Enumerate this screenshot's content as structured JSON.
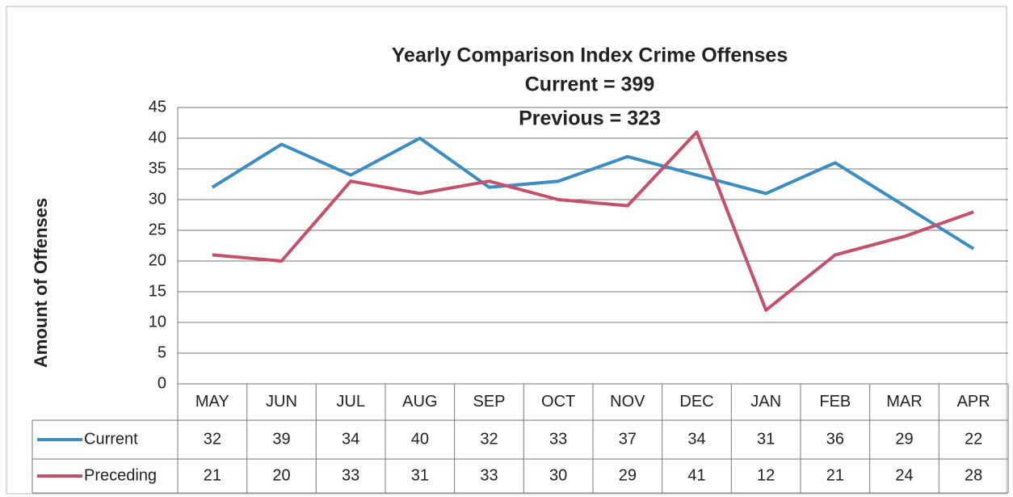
{
  "chart_data": {
    "type": "line",
    "title": "Yearly Comparison Index Crime Offenses",
    "subtitle": [
      "Current = 399",
      "Previous = 323"
    ],
    "y_label": "Amount of Offenses",
    "categories": [
      "MAY",
      "JUN",
      "JUL",
      "AUG",
      "SEP",
      "OCT",
      "NOV",
      "DEC",
      "JAN",
      "FEB",
      "MAR",
      "APR"
    ],
    "series": [
      {
        "name": "Current",
        "color": "#3a8dc3",
        "values": [
          32,
          39,
          34,
          40,
          32,
          33,
          37,
          34,
          31,
          36,
          29,
          22
        ]
      },
      {
        "name": "Preceding",
        "color": "#c4506b",
        "values": [
          21,
          20,
          33,
          31,
          33,
          30,
          29,
          41,
          12,
          21,
          24,
          28
        ]
      }
    ],
    "ylim": [
      0,
      45
    ],
    "yticks": [
      0,
      5,
      10,
      15,
      20,
      25,
      30,
      35,
      40,
      45
    ],
    "grid": true
  }
}
